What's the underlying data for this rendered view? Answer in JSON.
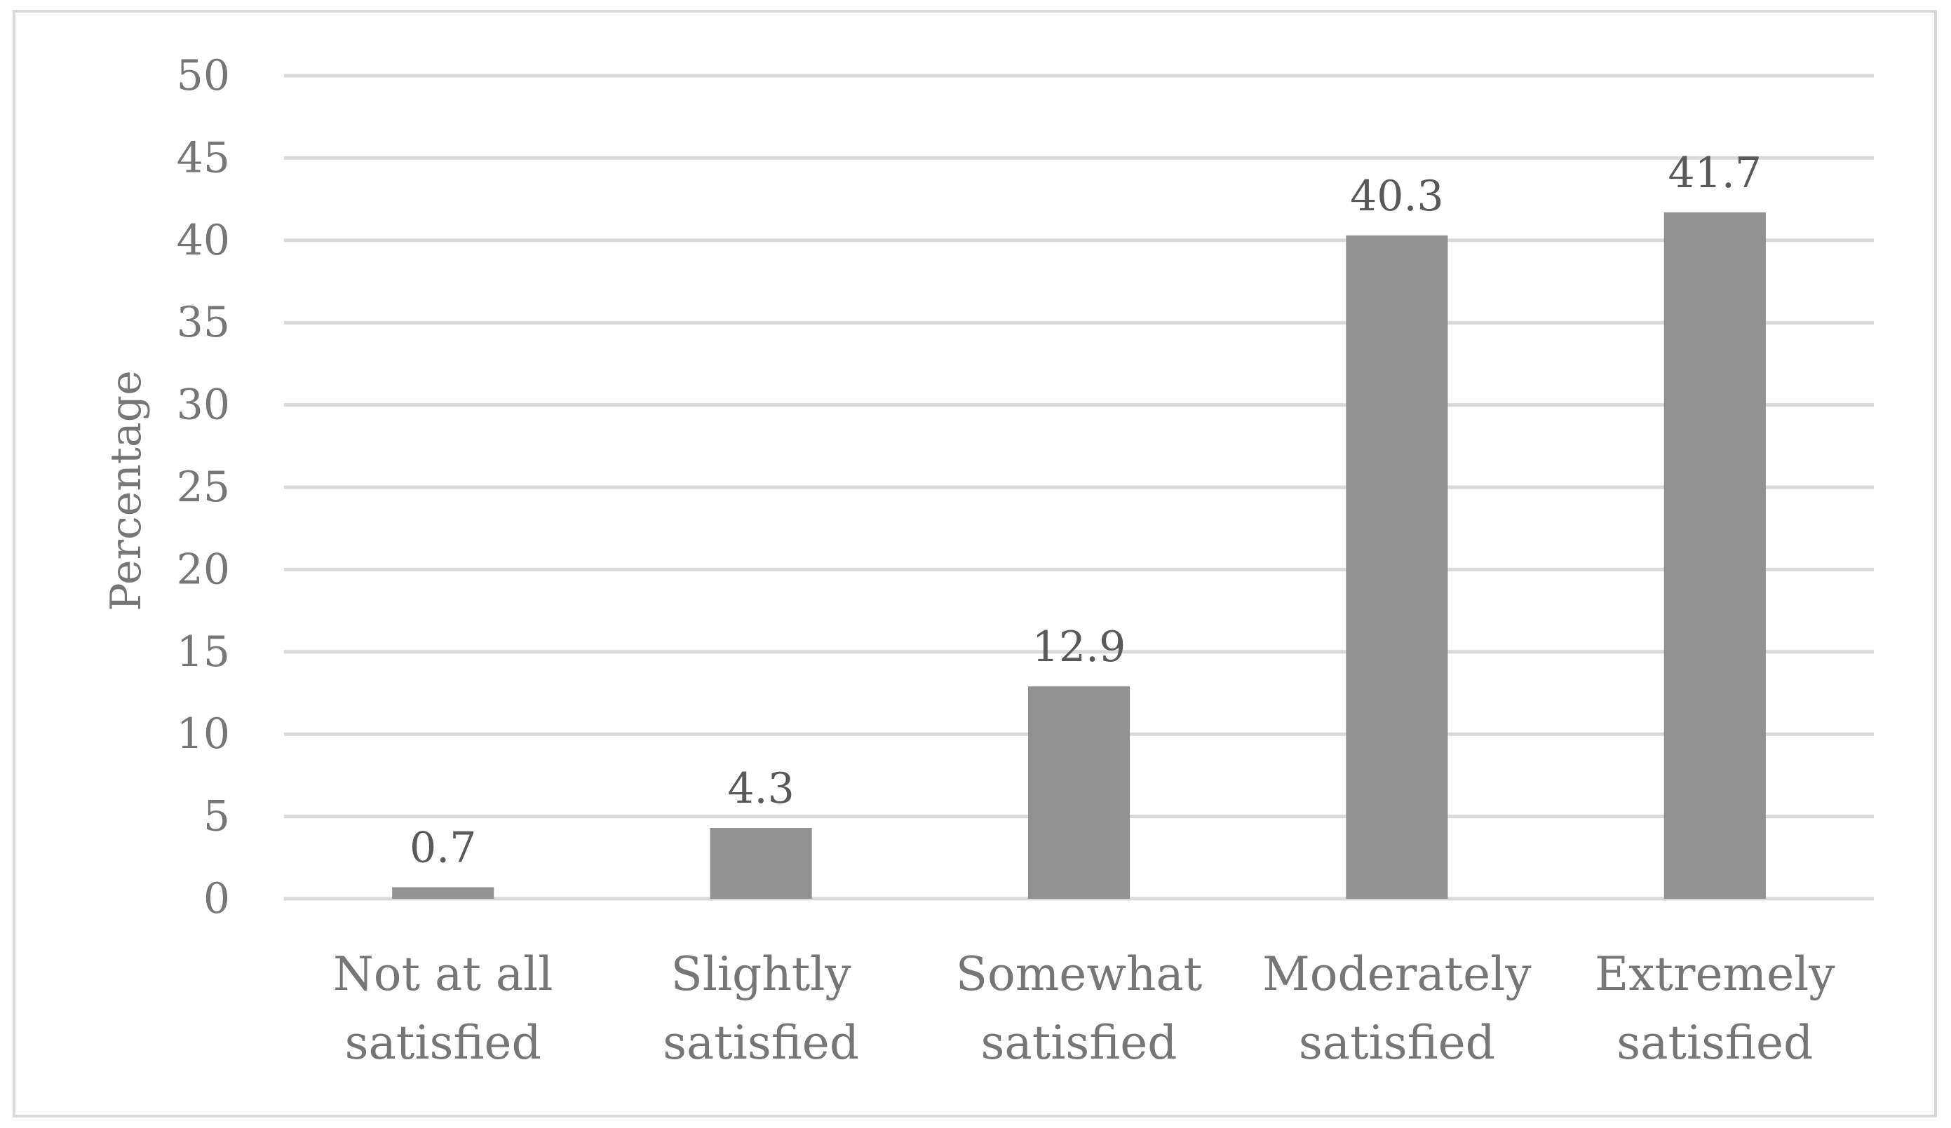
{
  "chart_data": {
    "type": "bar",
    "title": "",
    "xlabel": "",
    "ylabel": "Percentage",
    "ylim": [
      0,
      50
    ],
    "yticks": [
      0,
      5,
      10,
      15,
      20,
      25,
      30,
      35,
      40,
      45,
      50
    ],
    "grid": true,
    "legend": "none",
    "categories": [
      [
        "Not at all",
        "satisfied"
      ],
      [
        "Slightly",
        "satisfied"
      ],
      [
        "Somewhat",
        "satisfied"
      ],
      [
        "Moderately",
        "satisfied"
      ],
      [
        "Extremely",
        "satisfied"
      ]
    ],
    "values": [
      0.7,
      4.3,
      12.9,
      40.3,
      41.7
    ],
    "data_labels": [
      "0.7",
      "4.3",
      "12.9",
      "40.3",
      "41.7"
    ],
    "colors": {
      "bar": "#919191",
      "grid": "#d9d9d9",
      "text": "#767676",
      "data_label": "#595959"
    }
  }
}
